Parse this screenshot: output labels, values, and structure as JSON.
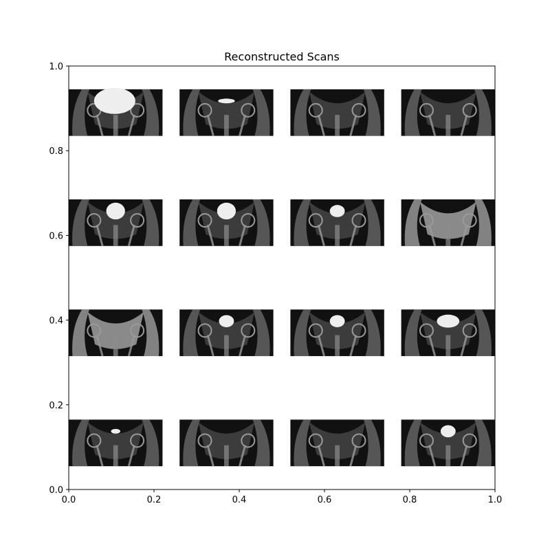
{
  "chart_data": {
    "type": "image-grid",
    "title": "Reconstructed Scans",
    "xlim": [
      0.0,
      1.0
    ],
    "ylim": [
      0.0,
      1.0
    ],
    "xticks": [
      "0.0",
      "0.2",
      "0.4",
      "0.6",
      "0.8",
      "1.0"
    ],
    "yticks": [
      "0.0",
      "0.2",
      "0.4",
      "0.6",
      "0.8",
      "1.0"
    ],
    "grid": false,
    "rows": 4,
    "cols": 4,
    "panel_extent": {
      "width": 0.22,
      "height": 0.11
    },
    "panels": [
      {
        "row": 0,
        "col": 0,
        "x0": 0.0,
        "y0": 0.835,
        "bladder": "large"
      },
      {
        "row": 0,
        "col": 1,
        "x0": 0.26,
        "y0": 0.835,
        "bladder": "thin"
      },
      {
        "row": 0,
        "col": 2,
        "x0": 0.52,
        "y0": 0.835,
        "bladder": "none"
      },
      {
        "row": 0,
        "col": 3,
        "x0": 0.78,
        "y0": 0.835,
        "bladder": "none"
      },
      {
        "row": 1,
        "col": 0,
        "x0": 0.0,
        "y0": 0.575,
        "bladder": "medium"
      },
      {
        "row": 1,
        "col": 1,
        "x0": 0.26,
        "y0": 0.575,
        "bladder": "medium"
      },
      {
        "row": 1,
        "col": 2,
        "x0": 0.52,
        "y0": 0.575,
        "bladder": "small"
      },
      {
        "row": 1,
        "col": 3,
        "x0": 0.78,
        "y0": 0.575,
        "bladder": "bright-tissue"
      },
      {
        "row": 2,
        "col": 0,
        "x0": 0.0,
        "y0": 0.315,
        "bladder": "bright-tissue"
      },
      {
        "row": 2,
        "col": 1,
        "x0": 0.26,
        "y0": 0.315,
        "bladder": "small"
      },
      {
        "row": 2,
        "col": 2,
        "x0": 0.52,
        "y0": 0.315,
        "bladder": "small"
      },
      {
        "row": 2,
        "col": 3,
        "x0": 0.78,
        "y0": 0.315,
        "bladder": "wide"
      },
      {
        "row": 3,
        "col": 0,
        "x0": 0.0,
        "y0": 0.055,
        "bladder": "tiny"
      },
      {
        "row": 3,
        "col": 1,
        "x0": 0.26,
        "y0": 0.055,
        "bladder": "none"
      },
      {
        "row": 3,
        "col": 2,
        "x0": 0.52,
        "y0": 0.055,
        "bladder": "none"
      },
      {
        "row": 3,
        "col": 3,
        "x0": 0.78,
        "y0": 0.055,
        "bladder": "small"
      }
    ],
    "colors": {
      "scan_background": "#111111",
      "tissue": "#6e6e6e",
      "bone": "#9a9a9a",
      "fluid": "#eeeeee",
      "axes": "#000000"
    }
  }
}
